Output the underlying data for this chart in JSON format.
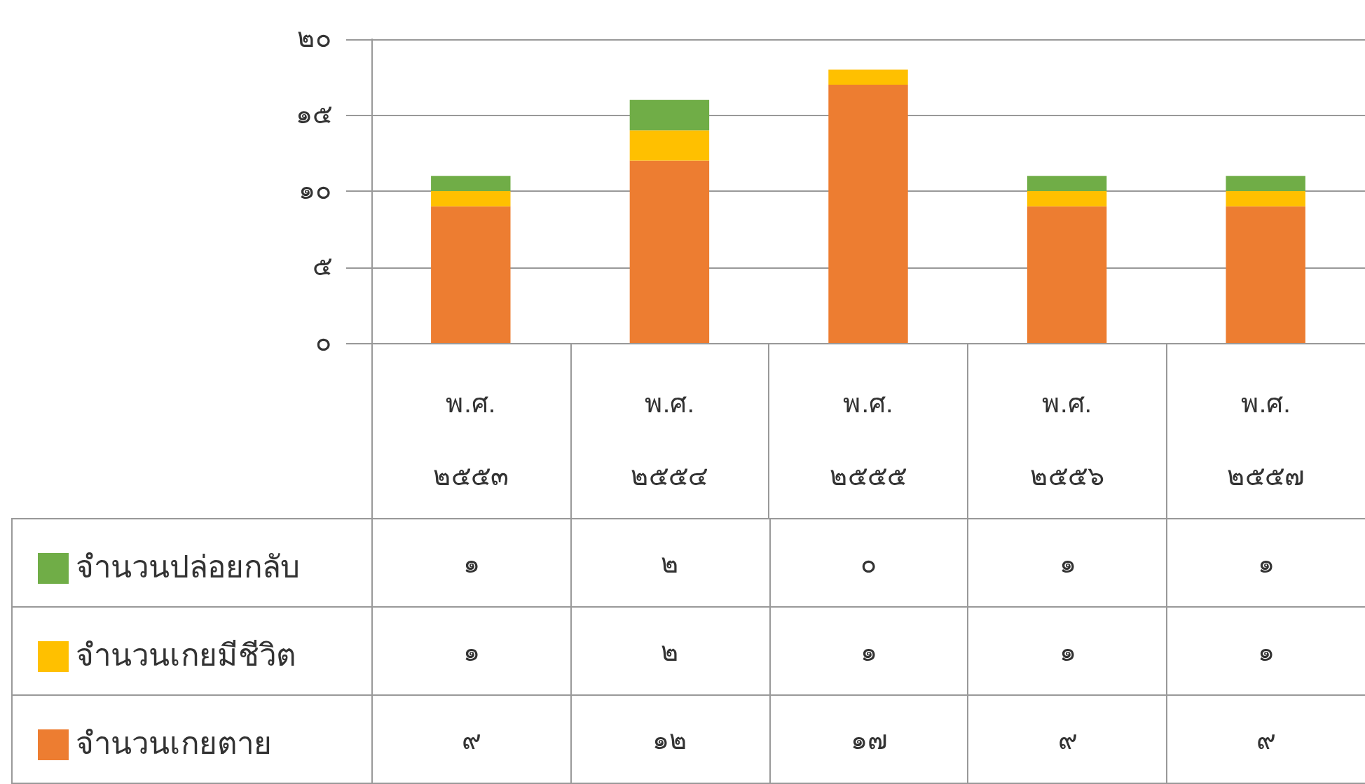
{
  "chart_data": {
    "type": "bar",
    "stacked": true,
    "categories": [
      "พ.ศ. ๒๕๕๓",
      "พ.ศ. ๒๕๕๔",
      "พ.ศ. ๒๕๕๕",
      "พ.ศ. ๒๕๕๖",
      "พ.ศ. ๒๕๕๗"
    ],
    "series": [
      {
        "name": "จำนวนเกยตาย",
        "color": "#ed7d31",
        "values": [
          9,
          12,
          17,
          9,
          9
        ],
        "value_labels": [
          "๙",
          "๑๒",
          "๑๗",
          "๙",
          "๙"
        ]
      },
      {
        "name": "จำนวนเกยมีชีวิต",
        "color": "#ffc000",
        "values": [
          1,
          2,
          1,
          1,
          1
        ],
        "value_labels": [
          "๑",
          "๒",
          "๑",
          "๑",
          "๑"
        ]
      },
      {
        "name": "จำนวนปล่อยกลับ",
        "color": "#70ad47",
        "values": [
          1,
          2,
          0,
          1,
          1
        ],
        "value_labels": [
          "๑",
          "๒",
          "๐",
          "๑",
          "๑"
        ]
      }
    ],
    "ylim": [
      0,
      20
    ],
    "yticks": [
      {
        "value": 0,
        "label": "๐"
      },
      {
        "value": 5,
        "label": "๕"
      },
      {
        "value": 10,
        "label": "๑๐"
      },
      {
        "value": 15,
        "label": "๑๕"
      },
      {
        "value": 20,
        "label": "๒๐"
      }
    ],
    "grid": "y",
    "legend": "bottom left"
  }
}
